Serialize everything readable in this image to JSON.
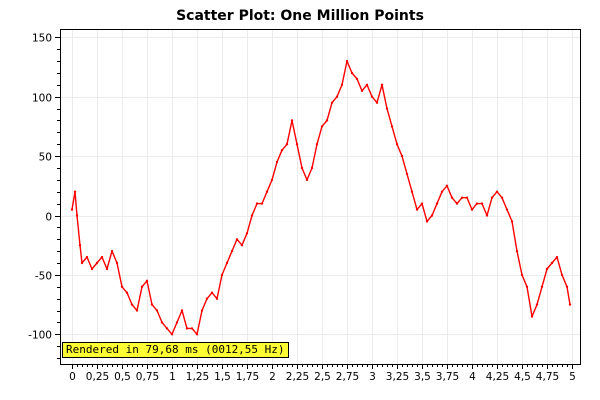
{
  "chart_data": {
    "type": "scatter",
    "title": "Scatter Plot: One Million Points",
    "xlabel": "",
    "ylabel": "",
    "xlim": [
      -0.12,
      5.08
    ],
    "ylim": [
      -125,
      157
    ],
    "grid": true,
    "series_color": "#ff0000",
    "x_ticks": [
      "0",
      "0,25",
      "0,5",
      "0,75",
      "1",
      "1,25",
      "1,5",
      "1,75",
      "2",
      "2,25",
      "2,5",
      "2,75",
      "3",
      "3,25",
      "3,5",
      "3,75",
      "4",
      "4,25",
      "4,5",
      "4,75",
      "5"
    ],
    "y_ticks": [
      "-100",
      "-50",
      "0",
      "50",
      "100",
      "150"
    ],
    "x_tick_values": [
      0,
      0.25,
      0.5,
      0.75,
      1,
      1.25,
      1.5,
      1.75,
      2,
      2.25,
      2.5,
      2.75,
      3,
      3.25,
      3.5,
      3.75,
      4,
      4.25,
      4.5,
      4.75,
      5
    ],
    "y_tick_values": [
      -100,
      -50,
      0,
      50,
      100,
      150
    ],
    "series": [
      {
        "x": [
          0,
          0.03,
          0.05,
          0.08,
          0.1,
          0.15,
          0.2,
          0.25,
          0.3,
          0.35,
          0.4,
          0.45,
          0.5,
          0.55,
          0.6,
          0.65,
          0.7,
          0.75,
          0.8,
          0.85,
          0.9,
          0.95,
          1.0,
          1.05,
          1.1,
          1.15,
          1.2,
          1.25,
          1.3,
          1.35,
          1.4,
          1.45,
          1.5,
          1.55,
          1.6,
          1.65,
          1.7,
          1.75,
          1.8,
          1.85,
          1.9,
          1.95,
          2.0,
          2.05,
          2.1,
          2.15,
          2.2,
          2.25,
          2.3,
          2.35,
          2.4,
          2.45,
          2.5,
          2.55,
          2.6,
          2.65,
          2.7,
          2.75,
          2.8,
          2.85,
          2.9,
          2.95,
          3.0,
          3.05,
          3.1,
          3.15,
          3.2,
          3.25,
          3.3,
          3.35,
          3.4,
          3.45,
          3.5,
          3.55,
          3.6,
          3.65,
          3.7,
          3.75,
          3.8,
          3.85,
          3.9,
          3.95,
          4.0,
          4.05,
          4.1,
          4.15,
          4.2,
          4.25,
          4.3,
          4.35,
          4.4,
          4.45,
          4.5,
          4.55,
          4.6,
          4.65,
          4.7,
          4.75,
          4.8,
          4.85,
          4.9,
          4.95,
          4.98
        ],
        "y": [
          5,
          20,
          0,
          -25,
          -40,
          -35,
          -45,
          -40,
          -35,
          -45,
          -30,
          -40,
          -60,
          -65,
          -75,
          -80,
          -60,
          -55,
          -75,
          -80,
          -90,
          -95,
          -100,
          -90,
          -80,
          -95,
          -95,
          -100,
          -80,
          -70,
          -65,
          -70,
          -50,
          -40,
          -30,
          -20,
          -25,
          -15,
          0,
          10,
          10,
          20,
          30,
          45,
          55,
          60,
          80,
          60,
          40,
          30,
          40,
          60,
          75,
          80,
          95,
          100,
          110,
          130,
          120,
          115,
          105,
          110,
          100,
          95,
          110,
          90,
          75,
          60,
          50,
          35,
          20,
          5,
          10,
          -5,
          0,
          10,
          20,
          25,
          15,
          10,
          15,
          15,
          5,
          10,
          10,
          0,
          15,
          20,
          15,
          5,
          -5,
          -30,
          -50,
          -60,
          -85,
          -75,
          -60,
          -45,
          -40,
          -35,
          -50,
          -60,
          -75
        ]
      }
    ]
  },
  "render_badge": {
    "text": "Rendered in 79,68 ms (0012,55 Hz)"
  }
}
